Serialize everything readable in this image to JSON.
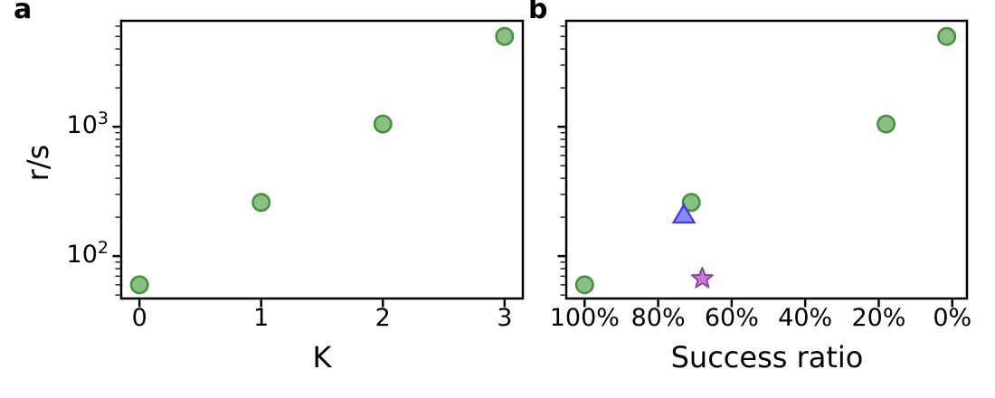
{
  "figure": {
    "background": "#ffffff",
    "axis_color": "#000000"
  },
  "chart_data": [
    {
      "type": "scatter",
      "panel_label": "a",
      "title": "",
      "xlabel": "K",
      "ylabel": "r/s",
      "xscale": "linear",
      "yscale": "log",
      "xlim": [
        -0.15,
        3.15
      ],
      "ylim": [
        47,
        6600
      ],
      "grid": false,
      "legend": null,
      "x_ticks": [
        {
          "v": 0,
          "label": "0"
        },
        {
          "v": 1,
          "label": "1"
        },
        {
          "v": 2,
          "label": "2"
        },
        {
          "v": 3,
          "label": "3"
        }
      ],
      "y_ticks": [
        {
          "v": 100,
          "mantissa": "10",
          "exponent": "2"
        },
        {
          "v": 1000,
          "mantissa": "10",
          "exponent": "3"
        }
      ],
      "series": [
        {
          "name": "green-circles",
          "marker": "circle",
          "fill": "#7db978",
          "edge": "#46913f",
          "points": [
            [
              0,
              60
            ],
            [
              1,
              260
            ],
            [
              2,
              1050
            ],
            [
              3,
              5000
            ]
          ]
        }
      ]
    },
    {
      "type": "scatter",
      "panel_label": "b",
      "title": "",
      "xlabel": "Success ratio",
      "ylabel": "",
      "xscale": "linear",
      "yscale": "log",
      "xlim": [
        105,
        -4
      ],
      "ylim": [
        47,
        6600
      ],
      "grid": false,
      "legend": null,
      "x_ticks": [
        {
          "v": 100,
          "label": "100%"
        },
        {
          "v": 80,
          "label": "80%"
        },
        {
          "v": 60,
          "label": "60%"
        },
        {
          "v": 40,
          "label": "40%"
        },
        {
          "v": 20,
          "label": "20%"
        },
        {
          "v": 0,
          "label": "0%"
        }
      ],
      "y_ticks": [
        {
          "v": 100
        },
        {
          "v": 1000
        }
      ],
      "series": [
        {
          "name": "green-circles",
          "marker": "circle",
          "fill": "#7db978",
          "edge": "#46913f",
          "points": [
            [
              100,
              60
            ],
            [
              71,
              260
            ],
            [
              18,
              1050
            ],
            [
              1.5,
              5000
            ]
          ]
        },
        {
          "name": "blue-triangle",
          "marker": "triangle",
          "fill": "#7373f8",
          "edge": "#3c3ce1",
          "points": [
            [
              73,
              210
            ]
          ]
        },
        {
          "name": "purple-star",
          "marker": "star",
          "fill": "#b468c5",
          "edge": "#93419f",
          "points": [
            [
              68,
              67
            ]
          ]
        }
      ]
    }
  ]
}
